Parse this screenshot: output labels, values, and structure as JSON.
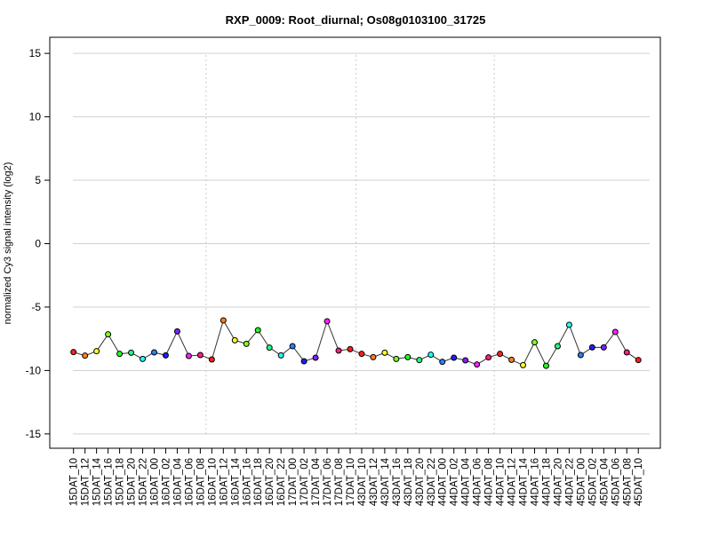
{
  "chart_data": {
    "type": "line",
    "title": "RXP_0009: Root_diurnal; Os08g0103100_31725",
    "xlabel": "",
    "ylabel": "normalized Cy3 signal intensity (log2)",
    "ylim": [
      -16,
      16
    ],
    "yticks": [
      15,
      10,
      5,
      0,
      -5,
      -10,
      -15
    ],
    "grid": true,
    "dividers_after_index": [
      11,
      24,
      36
    ],
    "categories": [
      "15DAT_10",
      "15DAT_12",
      "15DAT_14",
      "15DAT_16",
      "15DAT_18",
      "15DAT_20",
      "15DAT_22",
      "16DAT_00",
      "16DAT_02",
      "16DAT_04",
      "16DAT_06",
      "16DAT_08",
      "16DAT_10",
      "16DAT_12",
      "16DAT_14",
      "16DAT_16",
      "16DAT_18",
      "16DAT_20",
      "16DAT_22",
      "17DAT_00",
      "17DAT_02",
      "17DAT_04",
      "17DAT_06",
      "17DAT_08",
      "17DAT_10",
      "43DAT_10",
      "43DAT_12",
      "43DAT_14",
      "43DAT_16",
      "43DAT_18",
      "43DAT_20",
      "43DAT_22",
      "44DAT_00",
      "44DAT_02",
      "44DAT_04",
      "44DAT_06",
      "44DAT_08",
      "44DAT_10",
      "44DAT_12",
      "44DAT_14",
      "44DAT_16",
      "44DAT_18",
      "44DAT_20",
      "44DAT_22",
      "45DAT_00",
      "45DAT_02",
      "45DAT_04",
      "45DAT_06",
      "45DAT_08",
      "45DAT_10"
    ],
    "values": [
      -8.55,
      -8.83,
      -8.48,
      -7.15,
      -8.69,
      -8.6,
      -9.09,
      -8.57,
      -8.81,
      -6.92,
      -8.85,
      -8.78,
      -9.13,
      -6.05,
      -7.62,
      -7.9,
      -6.82,
      -8.2,
      -8.81,
      -8.08,
      -9.27,
      -8.99,
      -6.12,
      -8.43,
      -8.32,
      -8.69,
      -8.95,
      -8.6,
      -9.09,
      -8.95,
      -9.18,
      -8.76,
      -9.32,
      -8.99,
      -9.2,
      -9.53,
      -8.97,
      -8.69,
      -9.16,
      -9.58,
      -7.78,
      -9.63,
      -8.08,
      -6.4,
      -8.78,
      -8.18,
      -8.18,
      -6.96,
      -8.57,
      -9.18
    ],
    "hour_colors": {
      "00": "#2a7fff",
      "02": "#1f1fff",
      "04": "#7f1fff",
      "06": "#ff1fff",
      "08": "#ff1f7f",
      "10": "#ff1f1f",
      "12": "#ff7f1f",
      "14": "#ffff1f",
      "16": "#7fff1f",
      "18": "#1fff1f",
      "20": "#1fff7f",
      "22": "#1fffff"
    }
  }
}
